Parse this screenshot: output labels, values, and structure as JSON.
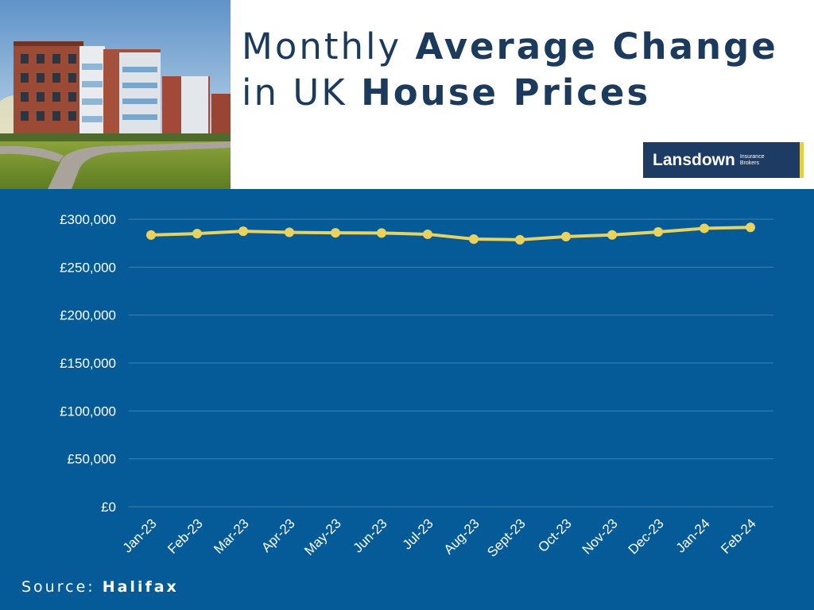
{
  "title": {
    "part1": "Monthly ",
    "part2": "Average Change",
    "part3": "in UK ",
    "part4": "House Prices"
  },
  "logo": {
    "main": "Lansdown",
    "sub_line1": "Insurance",
    "sub_line2": "Brokers"
  },
  "source": {
    "label": "Source: ",
    "value": "Halifax"
  },
  "colors": {
    "background": "#055b97",
    "line": "#e9d25e",
    "title": "#1b3a5c",
    "logo_bg": "#1d3b63",
    "logo_accent": "#e6cf3e"
  },
  "chart_data": {
    "type": "line",
    "categories": [
      "Jan-23",
      "Feb-23",
      "Mar-23",
      "Apr-23",
      "May-23",
      "Jun-23",
      "Jul-23",
      "Aug-23",
      "Sept-23",
      "Oct-23",
      "Nov-23",
      "Dec-23",
      "Jan-24",
      "Feb-24"
    ],
    "series": [
      {
        "values": [
          283500,
          285000,
          287500,
          286300,
          285800,
          285600,
          284300,
          279300,
          278600,
          281900,
          283600,
          286700,
          290500,
          291500
        ]
      }
    ],
    "y_ticks": [
      "£0",
      "£50,000",
      "£100,000",
      "£150,000",
      "£200,000",
      "£250,000",
      "£300,000"
    ],
    "ylim": [
      0,
      300000
    ],
    "grid": true,
    "legend": "none"
  }
}
